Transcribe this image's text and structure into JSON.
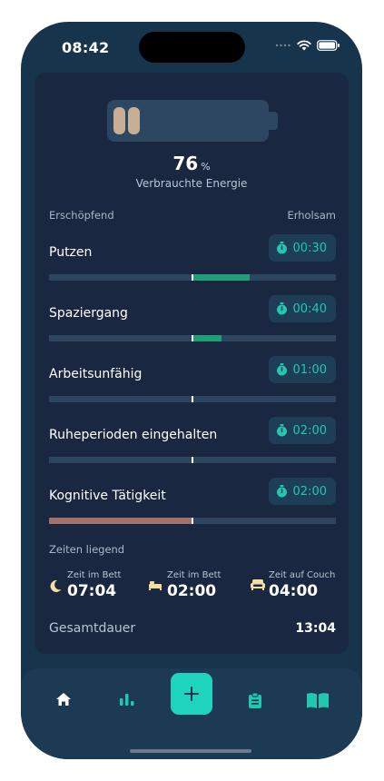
{
  "status_bar": {
    "time": "08:42"
  },
  "energy": {
    "value": "76",
    "unit": "%",
    "label": "Verbrauchte Energie"
  },
  "scale": {
    "left": "Erschöpfend",
    "right": "Erholsam"
  },
  "activities": [
    {
      "label": "Putzen",
      "duration": "00:30",
      "balance": 0.4,
      "bar_color": "#1f9e77"
    },
    {
      "label": "Spaziergang",
      "duration": "00:40",
      "balance": 0.2,
      "bar_color": "#1f9e77"
    },
    {
      "label": "Arbeitsunfähig",
      "duration": "01:00",
      "balance": 0.0,
      "bar_color": "#1f9e77"
    },
    {
      "label": "Ruheperioden eingehalten",
      "duration": "02:00",
      "balance": 0.0,
      "bar_color": "#1f9e77"
    },
    {
      "label": "Kognitive Tätigkeit",
      "duration": "02:00",
      "balance": -1.0,
      "bar_color": "#a0706a"
    }
  ],
  "lying": {
    "title": "Zeiten liegend",
    "items": [
      {
        "caption": "Zeit im Bett",
        "value": "07:04",
        "icon": "moon-icon"
      },
      {
        "caption": "Zeit im Bett",
        "value": "02:00",
        "icon": "bed-icon"
      },
      {
        "caption": "Zeit auf Couch",
        "value": "04:00",
        "icon": "couch-icon"
      }
    ]
  },
  "total": {
    "label": "Gesamtdauer",
    "value": "13:04"
  },
  "colors": {
    "accent": "#1ed4bd",
    "timer_text": "#22c7b0",
    "positive": "#1f9e77",
    "negative": "#a0706a"
  }
}
